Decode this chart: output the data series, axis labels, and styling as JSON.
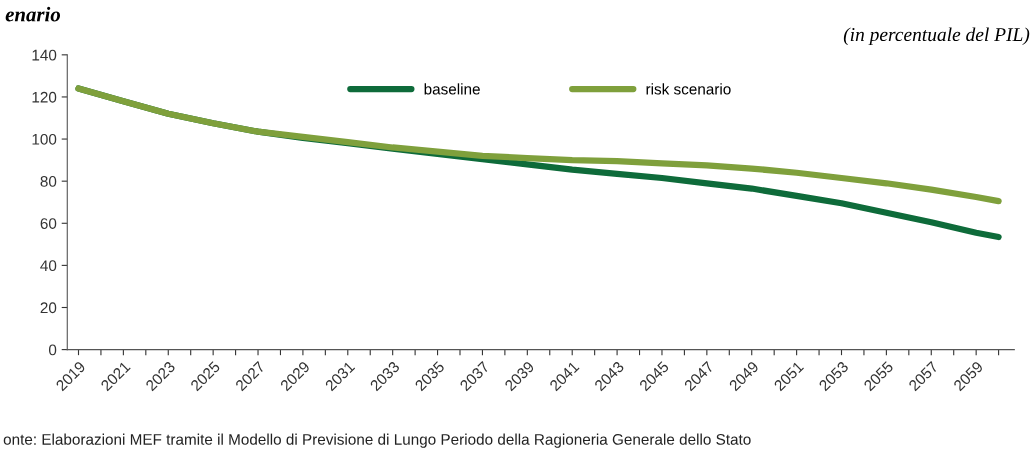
{
  "chart_data": {
    "type": "line",
    "title": "enario",
    "annotations": [
      "(in percentuale del PIL)",
      "onte: Elaborazioni MEF tramite il Modello di Previsione di Lungo Periodo della Ragioneria Generale dello Stato"
    ],
    "x": [
      2019,
      2021,
      2023,
      2025,
      2027,
      2029,
      2031,
      2033,
      2035,
      2037,
      2039,
      2041,
      2043,
      2045,
      2047,
      2049,
      2051,
      2053,
      2055,
      2057,
      2059,
      2060
    ],
    "series": [
      {
        "name": "baseline",
        "color": "#0e6b3a",
        "values": [
          124,
          118,
          112,
          107.5,
          103.5,
          100.5,
          98,
          95.5,
          93,
          90.5,
          88,
          85.5,
          83.5,
          81.5,
          79,
          76.5,
          73,
          69.5,
          65,
          60.5,
          55.5,
          53.5
        ]
      },
      {
        "name": "risk scenario",
        "color": "#7fa03c",
        "values": [
          124,
          118,
          112,
          107.5,
          103.5,
          101,
          98.5,
          96,
          94,
          92,
          91,
          90,
          89.5,
          88.5,
          87.5,
          86,
          84,
          81.5,
          79,
          76,
          72.5,
          70.5
        ]
      }
    ],
    "xlim": [
      2018.5,
      2060.7
    ],
    "xticks": [
      {
        "value": 2019,
        "label": "2019"
      },
      {
        "value": 2020,
        "label": null
      },
      {
        "value": 2021,
        "label": "2021"
      },
      {
        "value": 2022,
        "label": null
      },
      {
        "value": 2023,
        "label": "2023"
      },
      {
        "value": 2024,
        "label": null
      },
      {
        "value": 2025,
        "label": "2025"
      },
      {
        "value": 2026,
        "label": null
      },
      {
        "value": 2027,
        "label": "2027"
      },
      {
        "value": 2028,
        "label": null
      },
      {
        "value": 2029,
        "label": "2029"
      },
      {
        "value": 2030,
        "label": null
      },
      {
        "value": 2031,
        "label": "2031"
      },
      {
        "value": 2032,
        "label": null
      },
      {
        "value": 2033,
        "label": "2033"
      },
      {
        "value": 2034,
        "label": null
      },
      {
        "value": 2035,
        "label": "2035"
      },
      {
        "value": 2036,
        "label": null
      },
      {
        "value": 2037,
        "label": "2037"
      },
      {
        "value": 2038,
        "label": null
      },
      {
        "value": 2039,
        "label": "2039"
      },
      {
        "value": 2040,
        "label": null
      },
      {
        "value": 2041,
        "label": "2041"
      },
      {
        "value": 2042,
        "label": null
      },
      {
        "value": 2043,
        "label": "2043"
      },
      {
        "value": 2044,
        "label": null
      },
      {
        "value": 2045,
        "label": "2045"
      },
      {
        "value": 2046,
        "label": null
      },
      {
        "value": 2047,
        "label": "2047"
      },
      {
        "value": 2048,
        "label": null
      },
      {
        "value": 2049,
        "label": "2049"
      },
      {
        "value": 2050,
        "label": null
      },
      {
        "value": 2051,
        "label": "2051"
      },
      {
        "value": 2052,
        "label": null
      },
      {
        "value": 2053,
        "label": "2053"
      },
      {
        "value": 2054,
        "label": null
      },
      {
        "value": 2055,
        "label": "2055"
      },
      {
        "value": 2056,
        "label": null
      },
      {
        "value": 2057,
        "label": "2057"
      },
      {
        "value": 2058,
        "label": null
      },
      {
        "value": 2059,
        "label": "2059"
      },
      {
        "value": 2060,
        "label": null
      }
    ],
    "ylim": [
      0,
      140
    ],
    "yticks": [
      0,
      20,
      40,
      60,
      80,
      100,
      120,
      140
    ],
    "legend": "top",
    "grid": false,
    "marker": "none",
    "line_style": "solid"
  }
}
